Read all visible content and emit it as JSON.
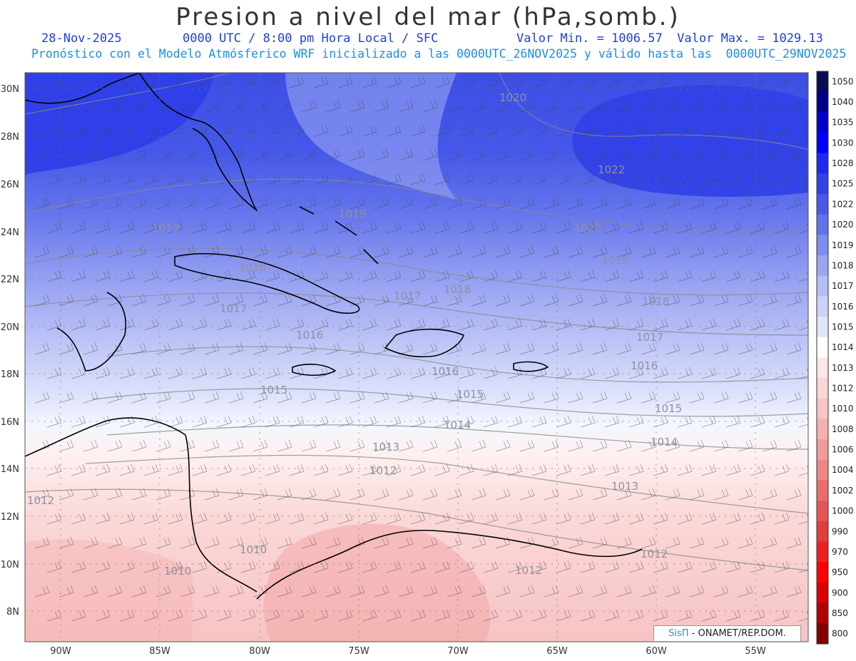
{
  "header": {
    "title": "Presion a nivel del mar (hPa,somb.)",
    "date": "28-Nov-2025",
    "time": "0000 UTC / 8:00 pm Hora Local / SFC",
    "min_max": "Valor Min. = 1006.57  Valor Max. = 1029.13",
    "forecast": "Pronóstico con el Modelo Atmósferico WRF inicializado a las 0000UTC_26NOV2025 y válido hasta las  0000UTC_29NOV2025"
  },
  "map": {
    "lon_ticks": [
      "90W",
      "85W",
      "80W",
      "75W",
      "70W",
      "65W",
      "60W",
      "55W"
    ],
    "lat_ticks": [
      "30N",
      "28N",
      "26N",
      "24N",
      "22N",
      "20N",
      "18N",
      "16N",
      "14N",
      "12N",
      "10N",
      "8N"
    ],
    "isobar_labels": [
      {
        "text": "1020"
      },
      {
        "text": "1022"
      },
      {
        "text": "1020"
      },
      {
        "text": "1019"
      },
      {
        "text": "1019"
      },
      {
        "text": "1019"
      },
      {
        "text": "1018"
      },
      {
        "text": "1018"
      },
      {
        "text": "1018"
      },
      {
        "text": "1017"
      },
      {
        "text": "1017"
      },
      {
        "text": "1017"
      },
      {
        "text": "1016"
      },
      {
        "text": "1016"
      },
      {
        "text": "1016"
      },
      {
        "text": "1015"
      },
      {
        "text": "1015"
      },
      {
        "text": "1015"
      },
      {
        "text": "1014"
      },
      {
        "text": "1014"
      },
      {
        "text": "1013"
      },
      {
        "text": "1013"
      },
      {
        "text": "1012"
      },
      {
        "text": "1012"
      },
      {
        "text": "1012"
      },
      {
        "text": "1012"
      },
      {
        "text": "1010"
      },
      {
        "text": "1010"
      }
    ]
  },
  "colorbar": {
    "levels": [
      "1050",
      "1040",
      "1035",
      "1030",
      "1028",
      "1025",
      "1022",
      "1020",
      "1019",
      "1018",
      "1017",
      "1016",
      "1015",
      "1014",
      "1013",
      "1012",
      "1010",
      "1008",
      "1006",
      "1004",
      "1002",
      "1000",
      "990",
      "970",
      "950",
      "900",
      "850",
      "800"
    ],
    "colors": [
      "#0a0a55",
      "#00008c",
      "#0000c8",
      "#0000ff",
      "#1e28f0",
      "#3241e8",
      "#4a5ae8",
      "#6272ec",
      "#7e8cef",
      "#9aa5f2",
      "#b4bdf5",
      "#ccd2f8",
      "#e2e6fb",
      "#ffffff",
      "#fde6e6",
      "#fbd6d6",
      "#f8c4c4",
      "#f5b0b0",
      "#f19a9a",
      "#ee8484",
      "#ea6c6c",
      "#e65454",
      "#e23c3c",
      "#f01e1e",
      "#ff0000",
      "#dc0000",
      "#b40000",
      "#820000"
    ]
  },
  "credit": {
    "brand": "SisΠ",
    "text": " - ONAMET/REP.DOM."
  }
}
